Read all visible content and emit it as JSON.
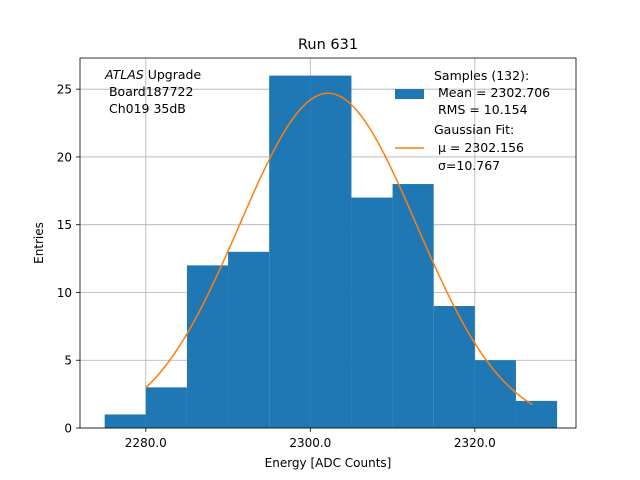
{
  "chart_data": {
    "type": "histogram",
    "title": "Run 631",
    "xlabel": "Energy [ADC Counts]",
    "ylabel": "Entries",
    "xlim": [
      2272.0,
      2332.3
    ],
    "ylim": [
      0,
      27.3
    ],
    "x_ticks": [
      2280,
      2300,
      2320
    ],
    "x_tick_labels": [
      "2280.0",
      "2300.0",
      "2320.0"
    ],
    "y_ticks": [
      0,
      5,
      10,
      15,
      20,
      25
    ],
    "y_tick_labels": [
      "0",
      "5",
      "10",
      "15",
      "20",
      "25"
    ],
    "grid": true,
    "bin_edges": [
      2275,
      2280,
      2285,
      2290,
      2295,
      2300,
      2305,
      2310,
      2315,
      2320,
      2325,
      2330
    ],
    "counts": [
      1,
      3,
      12,
      13,
      26,
      26,
      17,
      18,
      9,
      5,
      2
    ],
    "bar_color": "#1f77b4",
    "fit": {
      "type": "gaussian",
      "color": "#ff7f0e",
      "peak": 24.7,
      "mu": 2302.156,
      "sigma": 10.767,
      "x_range": [
        2280,
        2327
      ]
    },
    "annotation": {
      "italic": "ATLAS",
      "rest": " Upgrade",
      "lines": [
        " Board187722",
        " Ch019 35dB"
      ]
    },
    "legend": {
      "location": "upper-right",
      "entries": [
        {
          "lines": [
            "Samples (132):",
            " Mean = 2302.706",
            " RMS = 10.154"
          ],
          "kind": "patch",
          "color": "#1f77b4"
        },
        {
          "lines": [
            "Gaussian Fit:",
            " μ = 2302.156",
            " σ=10.767"
          ],
          "kind": "line",
          "color": "#ff7f0e"
        }
      ]
    }
  }
}
